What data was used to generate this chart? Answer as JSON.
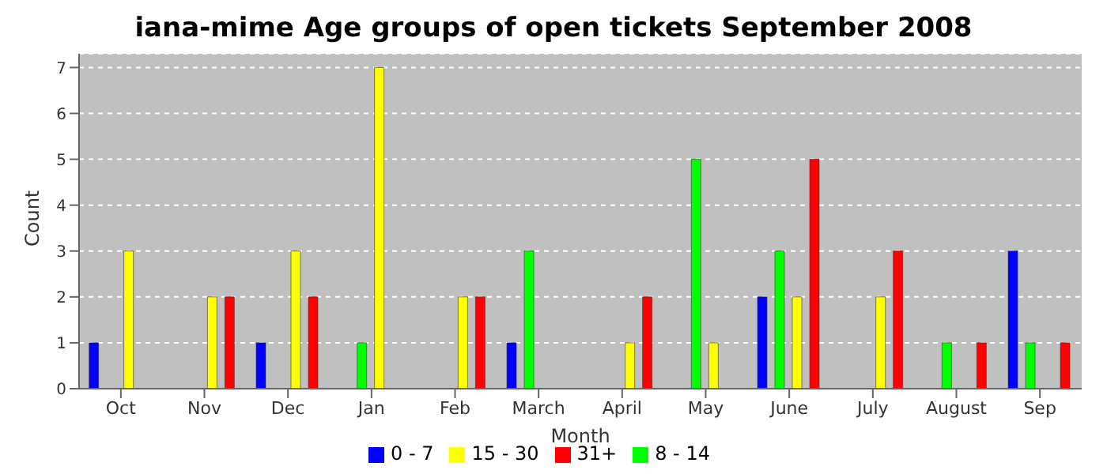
{
  "chart_data": {
    "type": "bar",
    "title": "iana-mime Age groups of open tickets September 2008",
    "xlabel": "Month",
    "ylabel": "Count",
    "categories": [
      "Oct",
      "Nov",
      "Dec",
      "Jan",
      "Feb",
      "March",
      "April",
      "May",
      "June",
      "July",
      "August",
      "Sep"
    ],
    "series": [
      {
        "name": "0 - 7",
        "color": "#0000ff",
        "values": [
          1,
          0,
          1,
          0,
          0,
          1,
          0,
          0,
          2,
          0,
          0,
          3
        ]
      },
      {
        "name": "8 - 14",
        "color": "#00ff00",
        "values": [
          0,
          0,
          0,
          1,
          0,
          3,
          0,
          5,
          3,
          0,
          1,
          1
        ]
      },
      {
        "name": "15 - 30",
        "color": "#ffff00",
        "values": [
          3,
          2,
          3,
          7,
          2,
          0,
          1,
          1,
          2,
          2,
          0,
          0
        ]
      },
      {
        "name": "31+",
        "color": "#ff0000",
        "values": [
          0,
          2,
          2,
          0,
          2,
          0,
          2,
          0,
          5,
          3,
          1,
          1
        ]
      }
    ],
    "ylim": [
      0,
      7.3
    ],
    "yticks": [
      0,
      1,
      2,
      3,
      4,
      5,
      6,
      7
    ],
    "grid": "y",
    "legend": "bottom"
  }
}
